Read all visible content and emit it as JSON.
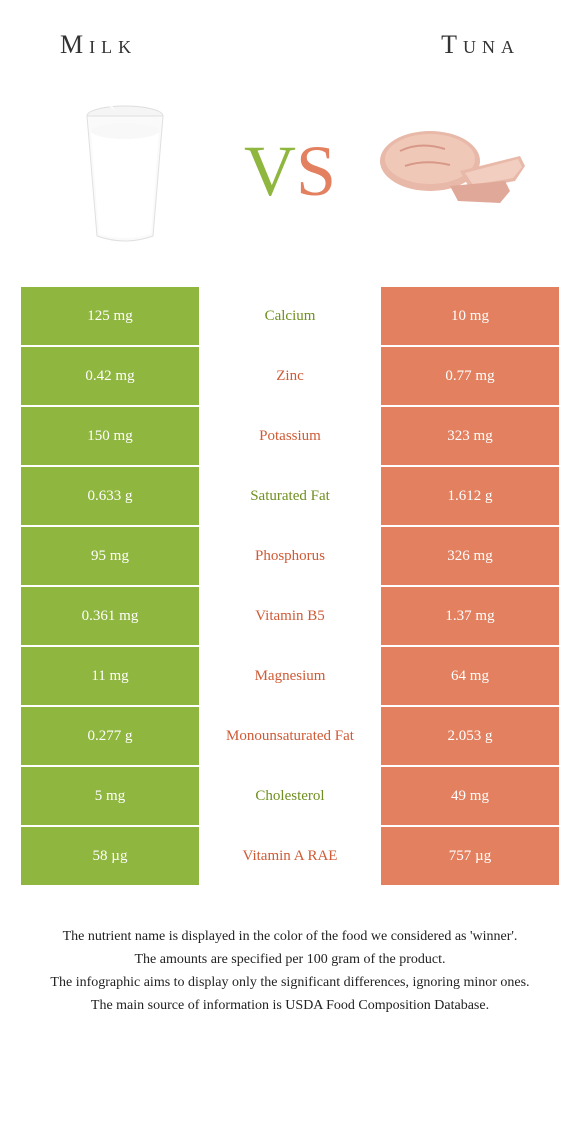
{
  "colors": {
    "green": "#8fb63f",
    "coral": "#e2805f",
    "green_text": "#6f9020",
    "coral_text": "#d05a35"
  },
  "header": {
    "left_title": "Milk",
    "right_title": "Tuna"
  },
  "vs": {
    "v": "V",
    "s": "S"
  },
  "rows": [
    {
      "left": "125 mg",
      "label": "Calcium",
      "right": "10 mg",
      "winner": "left"
    },
    {
      "left": "0.42 mg",
      "label": "Zinc",
      "right": "0.77 mg",
      "winner": "right"
    },
    {
      "left": "150 mg",
      "label": "Potassium",
      "right": "323 mg",
      "winner": "right"
    },
    {
      "left": "0.633 g",
      "label": "Saturated Fat",
      "right": "1.612 g",
      "winner": "left"
    },
    {
      "left": "95 mg",
      "label": "Phosphorus",
      "right": "326 mg",
      "winner": "right"
    },
    {
      "left": "0.361 mg",
      "label": "Vitamin B5",
      "right": "1.37 mg",
      "winner": "right"
    },
    {
      "left": "11 mg",
      "label": "Magnesium",
      "right": "64 mg",
      "winner": "right"
    },
    {
      "left": "0.277 g",
      "label": "Monounsaturated Fat",
      "right": "2.053 g",
      "winner": "right"
    },
    {
      "left": "5 mg",
      "label": "Cholesterol",
      "right": "49 mg",
      "winner": "left"
    },
    {
      "left": "58 µg",
      "label": "Vitamin A RAE",
      "right": "757 µg",
      "winner": "right"
    }
  ],
  "footnote": {
    "l1": "The nutrient name is displayed in the color of the food we considered as 'winner'.",
    "l2": "The amounts are specified per 100 gram of the product.",
    "l3": "The infographic aims to display only the significant differences, ignoring minor ones.",
    "l4": "The main source of information is USDA Food Composition Database."
  }
}
